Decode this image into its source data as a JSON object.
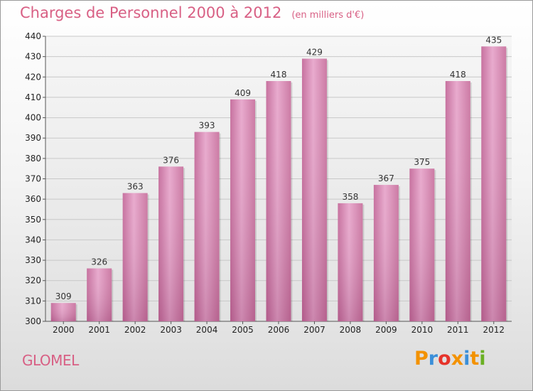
{
  "chart_data": {
    "type": "bar",
    "title": "Charges de Personnel 2000 à 2012",
    "subtitle": "(en milliers d'€)",
    "categories": [
      "2000",
      "2001",
      "2002",
      "2003",
      "2004",
      "2005",
      "2006",
      "2007",
      "2008",
      "2009",
      "2010",
      "2011",
      "2012"
    ],
    "values": [
      309,
      326,
      363,
      376,
      393,
      409,
      418,
      429,
      358,
      367,
      375,
      418,
      435
    ],
    "ylim": [
      300,
      440
    ],
    "yticks": [
      300,
      310,
      320,
      330,
      340,
      350,
      360,
      370,
      380,
      390,
      400,
      410,
      420,
      430,
      440
    ],
    "grid": true,
    "bar_color": "#d77fae",
    "xlabel": "",
    "ylabel": ""
  },
  "commune": "GLOMEL",
  "logo": {
    "text": "Proxiti",
    "letter_colors": [
      "#f39200",
      "#3a8fd9",
      "#e6332a",
      "#f39200",
      "#3a8fd9",
      "#f39200",
      "#6ab023"
    ]
  }
}
